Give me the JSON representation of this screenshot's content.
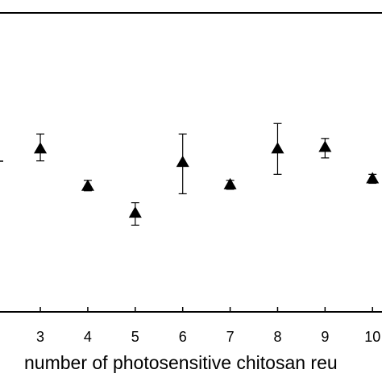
{
  "chart_data": {
    "type": "scatter",
    "xlabel": "number of photosensitive chitosan reu",
    "ylabel": "",
    "title": "",
    "xlim": [
      2.15,
      10.2
    ],
    "ylim": [
      0,
      1
    ],
    "x_ticks": [
      "3",
      "4",
      "5",
      "6",
      "7",
      "8",
      "9",
      "10"
    ],
    "y_ticks": [],
    "grid": false,
    "marker": "filled-triangle",
    "marker_color": "#000000",
    "series": [
      {
        "points": [
          {
            "x": 3,
            "y": 0.545,
            "err_low": 0.505,
            "err_high": 0.595
          },
          {
            "x": 4,
            "y": 0.42,
            "err_low": 0.405,
            "err_high": 0.44
          },
          {
            "x": 5,
            "y": 0.33,
            "err_low": 0.29,
            "err_high": 0.365
          },
          {
            "x": 6,
            "y": 0.5,
            "err_low": 0.395,
            "err_high": 0.595
          },
          {
            "x": 7,
            "y": 0.425,
            "err_low": 0.41,
            "err_high": 0.44
          },
          {
            "x": 8,
            "y": 0.545,
            "err_low": 0.46,
            "err_high": 0.63
          },
          {
            "x": 9,
            "y": 0.55,
            "err_low": 0.515,
            "err_high": 0.58
          },
          {
            "x": 10,
            "y": 0.445,
            "err_low": 0.43,
            "err_high": 0.46
          }
        ]
      }
    ]
  }
}
